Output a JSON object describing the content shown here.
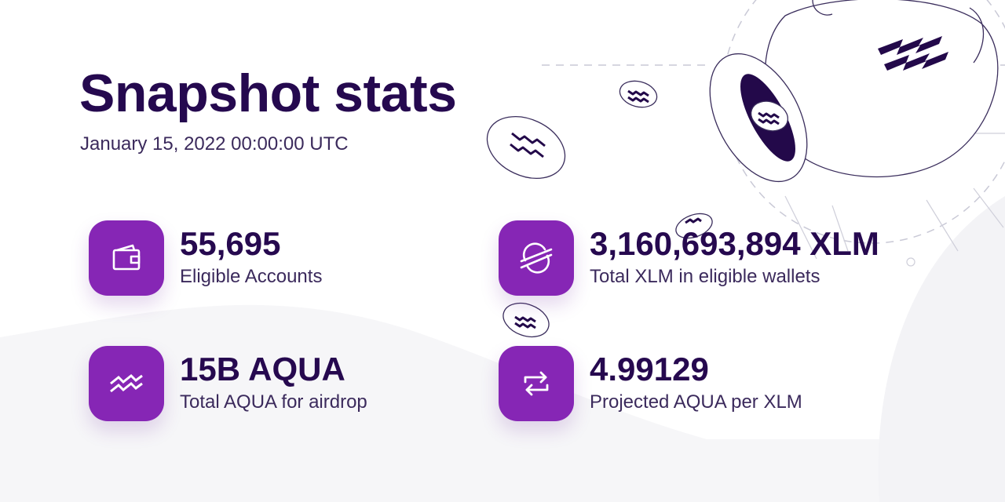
{
  "header": {
    "title": "Snapshot stats",
    "subtitle": "January 15, 2022 00:00:00 UTC"
  },
  "stats": [
    {
      "value": "55,695",
      "label": "Eligible Accounts",
      "icon": "wallet-icon"
    },
    {
      "value": "3,160,693,894 XLM",
      "label": "Total XLM in eligible wallets",
      "icon": "stellar-icon"
    },
    {
      "value": "15B AQUA",
      "label": "Total AQUA for airdrop",
      "icon": "aqua-waves-icon"
    },
    {
      "value": "4.99129",
      "label": "Projected AQUA per XLM",
      "icon": "exchange-arrows-icon"
    }
  ],
  "colors": {
    "accent": "#8626b5",
    "heading": "#25094f",
    "text": "#3b2a5c"
  }
}
